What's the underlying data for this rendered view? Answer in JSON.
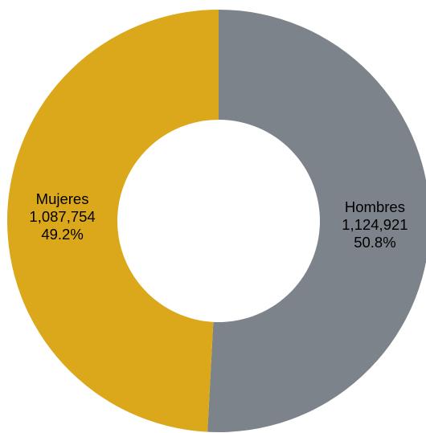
{
  "chart_data": {
    "type": "pie",
    "donut": true,
    "title": "",
    "legend": "none",
    "slices": [
      {
        "name": "Hombres",
        "value": 1124921,
        "value_label": "1,124,921",
        "percent_label": "50.8%",
        "color": "#7c838a"
      },
      {
        "name": "Mujeres",
        "value": 1087754,
        "value_label": "1,087,754",
        "percent_label": "49.2%",
        "color": "#dba81c"
      }
    ]
  }
}
